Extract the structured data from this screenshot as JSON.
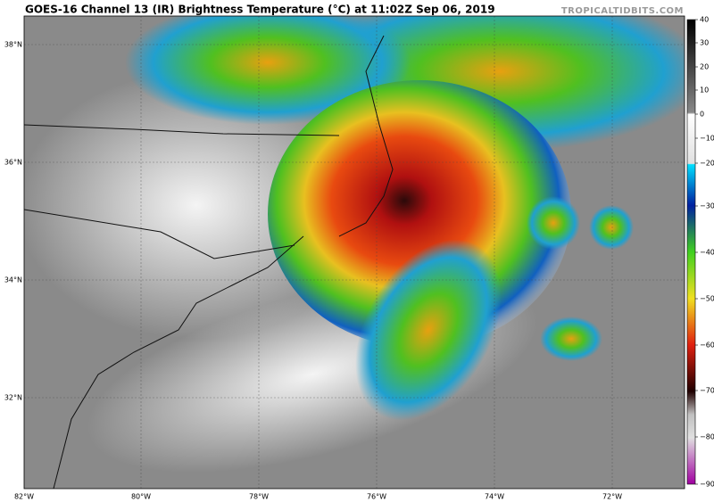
{
  "map": {
    "title": "GOES-16 Channel 13 (IR) Brightness Temperature (°C) at 11:02Z Sep 06, 2019",
    "credit": "TROPICALTIDBITS.COM",
    "lat_labels": [
      "38°N",
      "36°N",
      "34°N",
      "32°N"
    ],
    "lon_labels": [
      "82°W",
      "80°W",
      "78°W",
      "76°W",
      "74°W",
      "72°W"
    ],
    "colorbar_ticks": [
      "40",
      "30",
      "20",
      "10",
      "0",
      "−10",
      "−20",
      "−30",
      "−40",
      "−50",
      "−60",
      "−70",
      "−80",
      "−90"
    ]
  }
}
